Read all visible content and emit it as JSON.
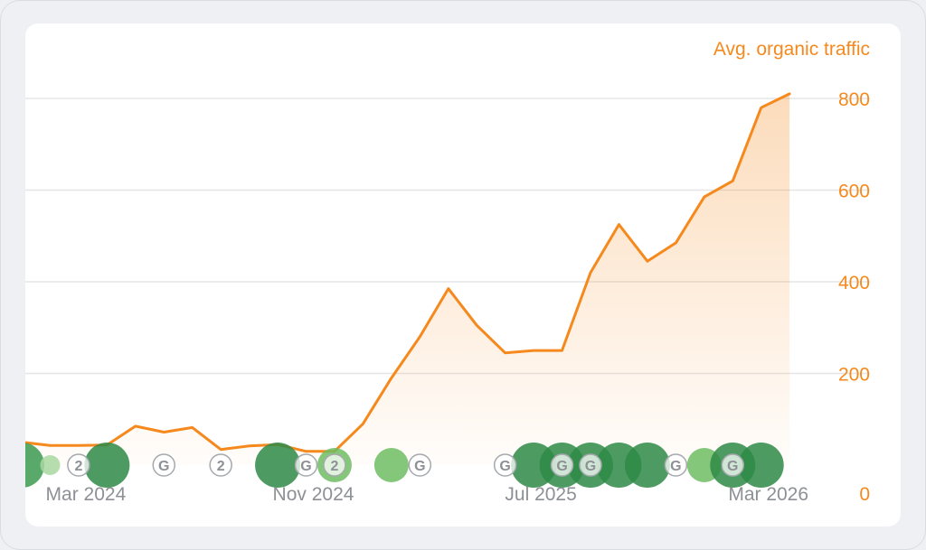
{
  "chart_data": {
    "type": "area",
    "series": [
      {
        "name": "Avg. organic traffic",
        "color": "#f5891d",
        "x": [
          "2024-01",
          "2024-02",
          "2024-03",
          "2024-04",
          "2024-05",
          "2024-06",
          "2024-07",
          "2024-08",
          "2024-09",
          "2024-10",
          "2024-11",
          "2024-12",
          "2025-01",
          "2025-02",
          "2025-03",
          "2025-04",
          "2025-05",
          "2025-06",
          "2025-07",
          "2025-08",
          "2025-09",
          "2025-10",
          "2025-11",
          "2025-12",
          "2026-01",
          "2026-02",
          "2026-03",
          "2026-04"
        ],
        "values": [
          50,
          43,
          43,
          44,
          85,
          72,
          82,
          34,
          42,
          45,
          30,
          30,
          90,
          190,
          280,
          385,
          305,
          245,
          250,
          250,
          420,
          525,
          445,
          485,
          585,
          620,
          780,
          810
        ]
      }
    ],
    "ylim": [
      0,
      800
    ],
    "yticks": [
      "0",
      "200",
      "400",
      "600",
      "800"
    ],
    "xticks": [
      {
        "label": "Mar 2024",
        "at": "2024-03"
      },
      {
        "label": "Nov 2024",
        "at": "2024-11"
      },
      {
        "label": "Jul 2025",
        "at": "2025-07"
      },
      {
        "label": "Mar 2026",
        "at": "2026-03"
      }
    ],
    "yaxis_position": "right",
    "grid": true,
    "event_markers": [
      {
        "at": "2024-01",
        "kind": "dot",
        "size": "large",
        "color": "#3b9a50"
      },
      {
        "at": "2024-02",
        "kind": "dot",
        "size": "small",
        "color": "#a8d7a0"
      },
      {
        "at": "2024-03",
        "kind": "badge",
        "label": "2"
      },
      {
        "at": "2024-04",
        "kind": "dot",
        "size": "large",
        "color": "#2e8a47"
      },
      {
        "at": "2024-06",
        "kind": "badge",
        "label": "G"
      },
      {
        "at": "2024-08",
        "kind": "badge",
        "label": "2"
      },
      {
        "at": "2024-10",
        "kind": "dot",
        "size": "large",
        "color": "#2e8a47"
      },
      {
        "at": "2024-11",
        "kind": "badge",
        "label": "G"
      },
      {
        "at": "2024-12",
        "kind": "dot",
        "size": "medium",
        "color": "#6fbd63"
      },
      {
        "at": "2024-12",
        "kind": "badge",
        "label": "2"
      },
      {
        "at": "2025-02",
        "kind": "dot",
        "size": "medium",
        "color": "#6fbd63"
      },
      {
        "at": "2025-03",
        "kind": "badge",
        "label": "G"
      },
      {
        "at": "2025-06",
        "kind": "badge",
        "label": "G"
      },
      {
        "at": "2025-07",
        "kind": "dot",
        "size": "large",
        "color": "#2e8a47"
      },
      {
        "at": "2025-08",
        "kind": "dot",
        "size": "large",
        "color": "#2e8a47"
      },
      {
        "at": "2025-08",
        "kind": "badge",
        "label": "G"
      },
      {
        "at": "2025-09",
        "kind": "dot",
        "size": "large",
        "color": "#2e8a47"
      },
      {
        "at": "2025-09",
        "kind": "badge",
        "label": "G"
      },
      {
        "at": "2025-10",
        "kind": "dot",
        "size": "large",
        "color": "#2e8a47"
      },
      {
        "at": "2025-11",
        "kind": "dot",
        "size": "large",
        "color": "#2e8a47"
      },
      {
        "at": "2025-12",
        "kind": "badge",
        "label": "G"
      },
      {
        "at": "2026-01",
        "kind": "dot",
        "size": "medium",
        "color": "#6fbd63"
      },
      {
        "at": "2026-02",
        "kind": "dot",
        "size": "large",
        "color": "#2e8a47"
      },
      {
        "at": "2026-02",
        "kind": "badge",
        "label": "G"
      },
      {
        "at": "2026-03",
        "kind": "dot",
        "size": "large",
        "color": "#2e8a47"
      }
    ]
  }
}
